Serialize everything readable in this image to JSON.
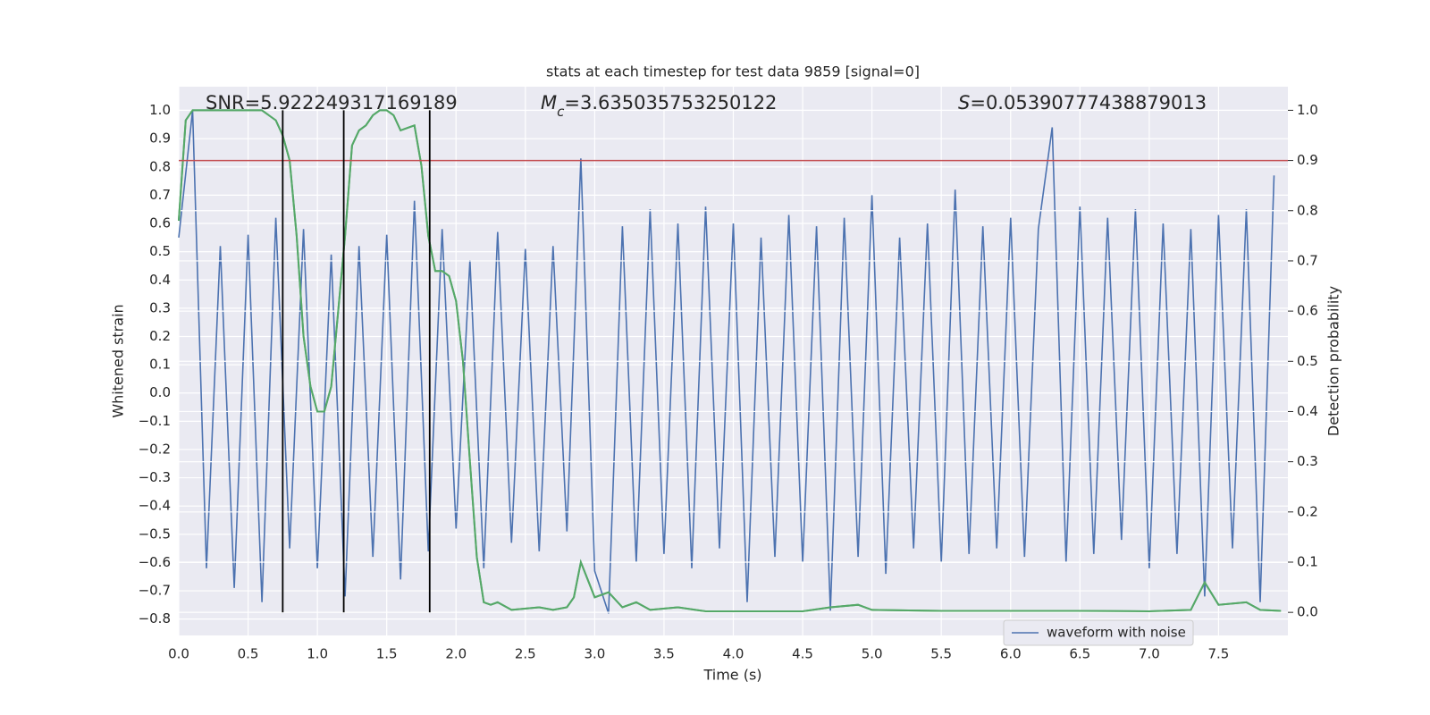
{
  "chart_data": {
    "type": "line",
    "title": "stats at each timestep for test data 9859 [signal=0]",
    "x_label": "Time (s)",
    "y_label": "Whitened strain",
    "y2_label": "Detection probability",
    "annotations": [
      [
        {
          "text": "SNR=5.922249317169189"
        }
      ],
      [
        {
          "text": "M",
          "italic": true
        },
        {
          "text": "c",
          "italic": true,
          "sub": true
        },
        {
          "text": "=3.635035753250122"
        }
      ],
      [
        {
          "text": "S",
          "italic": true
        },
        {
          "text": "=0.05390777438879013"
        }
      ]
    ],
    "xlim": [
      0,
      8.0
    ],
    "ylim": [
      -0.858,
      1.084
    ],
    "y2lim": [
      -0.046,
      1.047
    ],
    "xticks": [
      {
        "value": 0,
        "label": "0.0"
      },
      0.5,
      {
        "value": 1,
        "label": "1.0"
      },
      1.5,
      {
        "value": 2,
        "label": "2.0"
      },
      2.5,
      {
        "value": 3,
        "label": "3.0"
      },
      3.5,
      {
        "value": 4,
        "label": "4.0"
      },
      4.5,
      {
        "value": 5,
        "label": "5.0"
      },
      5.5,
      {
        "value": 6,
        "label": "6.0"
      },
      6.5,
      {
        "value": 7,
        "label": "7.0"
      },
      7.5
    ],
    "yticks": [
      {
        "value": -0.8,
        "label": "−0.8"
      },
      {
        "value": -0.7,
        "label": "−0.7"
      },
      {
        "value": -0.6,
        "label": "−0.6"
      },
      {
        "value": -0.5,
        "label": "−0.5"
      },
      {
        "value": -0.4,
        "label": "−0.4"
      },
      {
        "value": -0.3,
        "label": "−0.3"
      },
      {
        "value": -0.2,
        "label": "−0.2"
      },
      {
        "value": -0.1,
        "label": "−0.1"
      },
      {
        "value": 0,
        "label": "0.0"
      },
      0.1,
      0.2,
      0.3,
      0.4,
      0.5,
      0.6,
      0.7,
      0.8,
      0.9,
      {
        "value": 1,
        "label": "1.0"
      }
    ],
    "y2ticks": [
      {
        "value": 0,
        "label": "0.0"
      },
      0.1,
      0.2,
      0.3,
      0.4,
      0.5,
      0.6,
      0.7,
      0.8,
      0.9,
      {
        "value": 1,
        "label": "1.0"
      }
    ],
    "grid": true,
    "legend": "lower right",
    "series": [
      {
        "name": "waveform with noise",
        "color": "#4c72b0",
        "x": [
          0,
          0.1,
          0.2,
          0.3,
          0.4,
          0.5,
          0.6,
          0.7,
          0.8,
          0.9,
          1,
          1.1,
          1.2,
          1.3,
          1.4,
          1.5,
          1.6,
          1.7,
          1.8,
          1.9,
          2,
          2.1,
          2.2,
          2.3,
          2.4,
          2.5,
          2.6,
          2.7,
          2.8,
          2.9,
          3,
          3.1,
          3.2,
          3.3,
          3.4,
          3.5,
          3.6,
          3.7,
          3.8,
          3.9,
          4,
          4.1,
          4.2,
          4.3,
          4.4,
          4.5,
          4.6,
          4.7,
          4.8,
          4.9,
          5,
          5.1,
          5.2,
          5.3,
          5.4,
          5.5,
          5.6,
          5.7,
          5.8,
          5.9,
          6,
          6.1,
          6.2,
          6.3,
          6.4,
          6.5,
          6.6,
          6.7,
          6.8,
          6.9,
          7,
          7.1,
          7.2,
          7.3,
          7.4,
          7.5,
          7.6,
          7.7,
          7.8,
          7.9
        ],
        "values": [
          0.55,
          1.0,
          -0.62,
          0.52,
          -0.69,
          0.56,
          -0.74,
          0.62,
          -0.55,
          0.58,
          -0.62,
          0.49,
          -0.72,
          0.52,
          -0.58,
          0.56,
          -0.66,
          0.68,
          -0.56,
          0.58,
          -0.48,
          0.47,
          -0.62,
          0.57,
          -0.53,
          0.51,
          -0.56,
          0.52,
          -0.49,
          0.83,
          -0.63,
          -0.78,
          0.59,
          -0.6,
          0.65,
          -0.57,
          0.6,
          -0.62,
          0.66,
          -0.55,
          0.6,
          -0.74,
          0.55,
          -0.58,
          0.63,
          -0.6,
          0.59,
          -0.77,
          0.62,
          -0.58,
          0.7,
          -0.64,
          0.55,
          -0.55,
          0.6,
          -0.6,
          0.72,
          -0.57,
          0.59,
          -0.55,
          0.62,
          -0.58,
          0.58,
          0.94,
          -0.6,
          0.66,
          -0.57,
          0.62,
          -0.52,
          0.65,
          -0.62,
          0.6,
          -0.57,
          0.58,
          -0.72,
          0.63,
          -0.55,
          0.65,
          -0.74,
          0.77
        ]
      },
      {
        "color": "#55a868",
        "axis": "y2",
        "x": [
          0,
          0.05,
          0.1,
          0.6,
          0.65,
          0.7,
          0.75,
          0.8,
          0.85,
          0.9,
          0.95,
          1,
          1.05,
          1.1,
          1.15,
          1.2,
          1.25,
          1.3,
          1.35,
          1.4,
          1.45,
          1.5,
          1.55,
          1.6,
          1.65,
          1.7,
          1.75,
          1.8,
          1.85,
          1.9,
          1.95,
          2,
          2.05,
          2.1,
          2.15,
          2.2,
          2.25,
          2.3,
          2.4,
          2.6,
          2.7,
          2.8,
          2.85,
          2.9,
          3,
          3.1,
          3.2,
          3.3,
          3.4,
          3.6,
          3.8,
          4.5,
          4.7,
          4.9,
          5,
          5.5,
          6,
          6.5,
          7,
          7.3,
          7.4,
          7.5,
          7.7,
          7.8,
          7.95
        ],
        "values": [
          0.78,
          0.98,
          1.0,
          1.0,
          0.99,
          0.98,
          0.95,
          0.9,
          0.75,
          0.55,
          0.45,
          0.4,
          0.4,
          0.45,
          0.6,
          0.75,
          0.93,
          0.96,
          0.97,
          0.99,
          1.0,
          1.0,
          0.99,
          0.96,
          0.965,
          0.97,
          0.89,
          0.75,
          0.68,
          0.68,
          0.67,
          0.62,
          0.5,
          0.3,
          0.11,
          0.02,
          0.015,
          0.02,
          0.005,
          0.01,
          0.005,
          0.01,
          0.03,
          0.1,
          0.03,
          0.04,
          0.01,
          0.02,
          0.005,
          0.01,
          0.002,
          0.002,
          0.01,
          0.015,
          0.005,
          0.003,
          0.003,
          0.003,
          0.002,
          0.005,
          0.06,
          0.015,
          0.02,
          0.005,
          0.003
        ]
      }
    ],
    "hline": {
      "value": 0.9,
      "axis": "y2",
      "color": "#c44e52"
    },
    "vlines": {
      "x": [
        0.75,
        1.19,
        1.81
      ],
      "ymin": 0,
      "ymax": 1,
      "axis": "y2",
      "color": "#000000"
    }
  }
}
